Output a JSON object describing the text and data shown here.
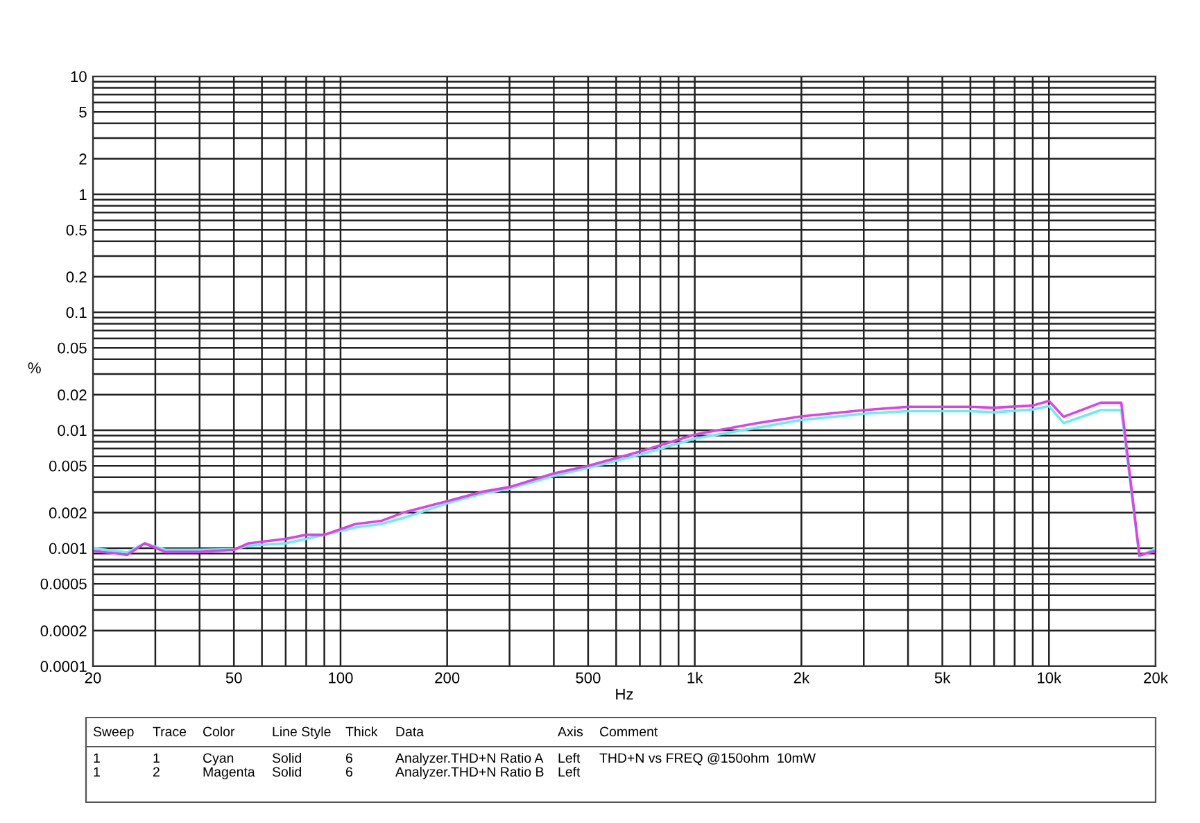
{
  "chart_data": {
    "type": "line",
    "xlabel": "Hz",
    "ylabel": "%",
    "log": "xy",
    "grid": true,
    "marker": "none",
    "line_style": "solid",
    "xlim": [
      20,
      20000
    ],
    "ylim": [
      0.0001,
      10
    ],
    "xticks": [
      20,
      {
        "value": 30,
        "label": null
      },
      {
        "value": 40,
        "label": null
      },
      50,
      {
        "value": 60,
        "label": null
      },
      {
        "value": 70,
        "label": null
      },
      {
        "value": 80,
        "label": null
      },
      {
        "value": 90,
        "label": null
      },
      100,
      200,
      {
        "value": 300,
        "label": null
      },
      {
        "value": 400,
        "label": null
      },
      500,
      {
        "value": 600,
        "label": null
      },
      {
        "value": 700,
        "label": null
      },
      {
        "value": 800,
        "label": null
      },
      {
        "value": 900,
        "label": null
      },
      {
        "value": 1000,
        "label": "1k"
      },
      {
        "value": 2000,
        "label": "2k"
      },
      {
        "value": 3000,
        "label": null
      },
      {
        "value": 4000,
        "label": null
      },
      {
        "value": 5000,
        "label": "5k"
      },
      {
        "value": 6000,
        "label": null
      },
      {
        "value": 7000,
        "label": null
      },
      {
        "value": 8000,
        "label": null
      },
      {
        "value": 9000,
        "label": null
      },
      {
        "value": 10000,
        "label": "10k"
      },
      {
        "value": 20000,
        "label": "20k"
      }
    ],
    "yticks": [
      0.0001,
      0.0002,
      {
        "value": 0.0003,
        "label": null
      },
      {
        "value": 0.0004,
        "label": null
      },
      0.0005,
      {
        "value": 0.0006,
        "label": null
      },
      {
        "value": 0.0007,
        "label": null
      },
      {
        "value": 0.0008,
        "label": null
      },
      {
        "value": 0.0009,
        "label": null
      },
      0.001,
      0.002,
      {
        "value": 0.003,
        "label": null
      },
      {
        "value": 0.004,
        "label": null
      },
      0.005,
      {
        "value": 0.006,
        "label": null
      },
      {
        "value": 0.007,
        "label": null
      },
      {
        "value": 0.008,
        "label": null
      },
      {
        "value": 0.009,
        "label": null
      },
      0.01,
      0.02,
      {
        "value": 0.03,
        "label": null
      },
      {
        "value": 0.04,
        "label": null
      },
      0.05,
      {
        "value": 0.06,
        "label": null
      },
      {
        "value": 0.07,
        "label": null
      },
      {
        "value": 0.08,
        "label": null
      },
      {
        "value": 0.09,
        "label": null
      },
      0.1,
      0.2,
      {
        "value": 0.3,
        "label": null
      },
      {
        "value": 0.4,
        "label": null
      },
      0.5,
      {
        "value": 0.6,
        "label": null
      },
      {
        "value": 0.7,
        "label": null
      },
      {
        "value": 0.8,
        "label": null
      },
      {
        "value": 0.9,
        "label": null
      },
      1,
      2,
      {
        "value": 3,
        "label": null
      },
      {
        "value": 4,
        "label": null
      },
      5,
      {
        "value": 6,
        "label": null
      },
      {
        "value": 7,
        "label": null
      },
      {
        "value": 8,
        "label": null
      },
      {
        "value": 9,
        "label": null
      },
      10
    ],
    "x": [
      20,
      25,
      28,
      32,
      40,
      50,
      55,
      70,
      80,
      90,
      110,
      130,
      150,
      200,
      250,
      300,
      400,
      500,
      700,
      1000,
      1500,
      2000,
      3000,
      4000,
      6000,
      7000,
      9000,
      10000,
      11000,
      14000,
      16000,
      18000,
      20000
    ],
    "series": [
      {
        "color": "#66eef2",
        "values": [
          0.001,
          0.00092,
          0.0011,
          0.00097,
          0.00097,
          0.00098,
          0.00105,
          0.0011,
          0.0012,
          0.0013,
          0.0015,
          0.0016,
          0.0018,
          0.0024,
          0.0029,
          0.0032,
          0.0041,
          0.0048,
          0.0062,
          0.0085,
          0.0105,
          0.0122,
          0.0138,
          0.0145,
          0.0145,
          0.0142,
          0.015,
          0.016,
          0.0115,
          0.0148,
          0.0148,
          0.00085,
          0.001
        ]
      },
      {
        "color": "#e040e8",
        "values": [
          0.00095,
          0.00088,
          0.0011,
          0.00093,
          0.00093,
          0.00097,
          0.0011,
          0.0012,
          0.0013,
          0.0013,
          0.0016,
          0.0017,
          0.002,
          0.0025,
          0.003,
          0.0033,
          0.0043,
          0.005,
          0.0066,
          0.0092,
          0.0115,
          0.0131,
          0.0148,
          0.0158,
          0.0158,
          0.0155,
          0.0162,
          0.0177,
          0.013,
          0.0171,
          0.0171,
          0.00087,
          0.00095
        ]
      }
    ],
    "annotations": [
      "Sweep",
      "Trace",
      "Color",
      "Line Style",
      "Thick",
      "Data",
      "Axis",
      "Comment",
      "1",
      "1",
      "Cyan",
      "Solid",
      "6",
      "Analyzer.THD+N Ratio A",
      "Left",
      "THD+N vs FREQ @150ohm  10mW",
      "1",
      "2",
      "Magenta",
      "Solid",
      "6",
      "Analyzer.THD+N Ratio B",
      "Left"
    ]
  }
}
